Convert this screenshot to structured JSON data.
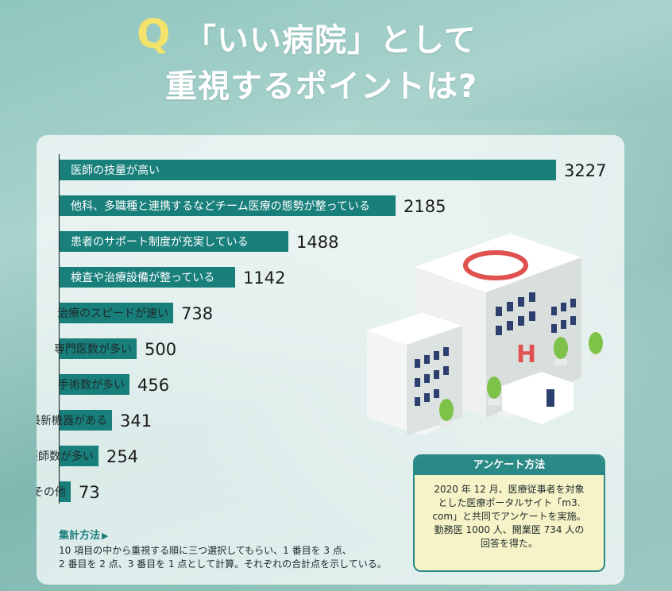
{
  "title": {
    "q": "Q",
    "line1": "「いい病院」として",
    "line2": "重視するポイントは?"
  },
  "colors": {
    "bar": "#187f7b",
    "accent_yellow": "#f3e36a",
    "survey_bg": "#f6f3c8"
  },
  "chart_data": {
    "type": "bar",
    "orientation": "horizontal",
    "categories": [
      "医師の技量が高い",
      "他科、多職種と連携するなどチーム医療の態勢が整っている",
      "患者のサポート制度が充実している",
      "検査や治療設備が整っている",
      "治療のスピードが速い",
      "専門医数が多い",
      "手術数が多い",
      "最新機器がある",
      "看護師数が多い",
      "その他"
    ],
    "values": [
      3227,
      2185,
      1488,
      1142,
      738,
      500,
      456,
      341,
      254,
      73
    ],
    "title": "",
    "xlabel": "",
    "ylabel": "",
    "grid": false
  },
  "method": {
    "title": "集計方法",
    "arrow": "▶",
    "line1": "10 項目の中から重視する順に三つ選択してもらい、1 番目を 3 点、",
    "line2": "2 番目を 2 点、3 番目を 1 点として計算。それぞれの合計点を示している。"
  },
  "survey": {
    "title": "アンケート方法",
    "line1": "2020 年 12 月、医療従事者を対象",
    "line2": "とした医療ポータルサイト「m3.",
    "line3": "com」と共同でアンケートを実施。",
    "line4": "勤務医 1000 人、開業医 734 人の",
    "line5": "回答を得た。"
  },
  "illustration": {
    "hospital_sign": "H"
  }
}
